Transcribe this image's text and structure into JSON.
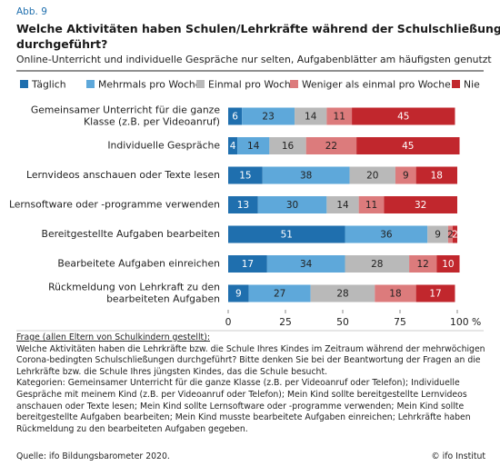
{
  "figure_label": "Abb. 9",
  "chart_data": {
    "type": "stacked-bar-horizontal",
    "title": "Welche Aktivitäten haben Schulen/Lehrkräfte während der Schulschließungen durchgeführt?",
    "subtitle": "Online-Unterricht und individuelle Gespräche nur selten, Aufgabenblätter am häufigsten genutzt",
    "categories": [
      [
        "Gemeinsamer Unterricht für die ganze",
        "Klasse (z.B. per Videoanruf)"
      ],
      [
        "Individuelle Gespräche"
      ],
      [
        "Lernvideos anschauen oder Texte lesen"
      ],
      [
        "Lernsoftware oder -programme verwenden"
      ],
      [
        "Bereitgestellte Aufgaben bearbeiten"
      ],
      [
        "Bearbeitete Aufgaben einreichen"
      ],
      [
        "Rückmeldung von Lehrkraft zu den",
        "bearbeiteten Aufgaben"
      ]
    ],
    "series": [
      {
        "name": "Täglich",
        "color": "#1f6fae",
        "values": [
          6,
          4,
          15,
          13,
          51,
          17,
          9
        ]
      },
      {
        "name": "Mehrmals pro Woche",
        "color": "#5ea8da",
        "values": [
          23,
          14,
          38,
          30,
          36,
          34,
          27
        ]
      },
      {
        "name": "Einmal pro Woche",
        "color": "#b9b9b9",
        "values": [
          14,
          16,
          20,
          14,
          9,
          28,
          28
        ]
      },
      {
        "name": "Weniger als einmal pro Woche",
        "color": "#dc7b7c",
        "values": [
          11,
          22,
          9,
          11,
          2,
          12,
          18
        ]
      },
      {
        "name": "Nie",
        "color": "#c1272d",
        "values": [
          45,
          45,
          18,
          32,
          2,
          10,
          17
        ]
      }
    ],
    "xlim": [
      0,
      100
    ],
    "xticks": [
      0,
      25,
      50,
      75,
      {
        "value": 100,
        "label": "100 %"
      }
    ]
  },
  "notes": {
    "question_heading": "Frage (allen Eltern von Schulkindern gestellt):",
    "question": "Welche Aktivitäten haben die Lehrkräfte bzw. die Schule Ihres Kindes im Zeitraum während der mehrwöchigen Corona-bedingten Schulschließungen durchgeführt? Bitte denken Sie bei der Beantwortung der Fragen an die Lehrkräfte bzw. die Schule Ihres jüngsten Kindes, das die Schule besucht.",
    "categories_text": "Kategorien: Gemeinsamer Unterricht für die ganze Klasse (z.B. per Videoanruf oder Telefon); Individuelle Gespräche mit meinem Kind (z.B. per Videoanruf oder Telefon); Mein Kind sollte bereitgestellte Lernvideos anschauen oder Texte lesen; Mein Kind sollte Lernsoftware oder -programme verwenden; Mein Kind sollte bereitgestellte Aufgaben bearbeiten; Mein Kind musste bearbeitete Aufgaben einreichen; Lehrkräfte haben Rückmeldung zu den bearbeiteten Aufgaben gegeben.",
    "source": "Quelle: ifo Bildungsbarometer 2020.",
    "copyright": "© ifo Institut"
  }
}
